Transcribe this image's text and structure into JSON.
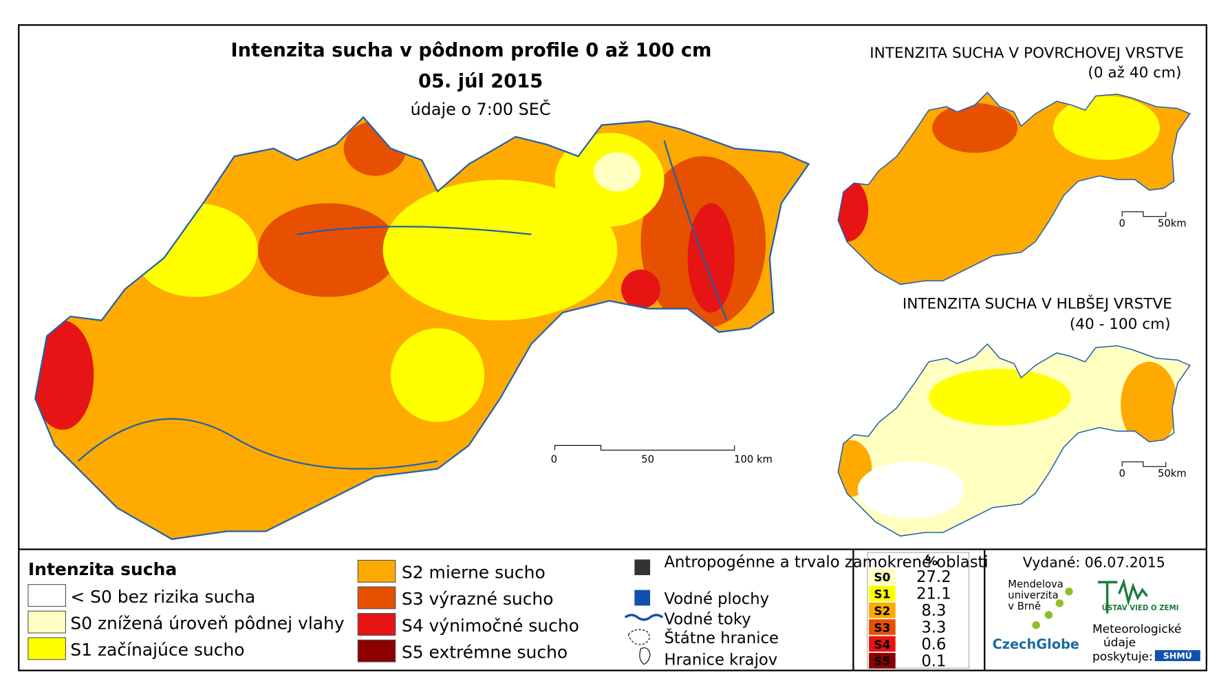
{
  "header": {
    "title": "Intenzita sucha v pôdnom profile 0 až 100 cm",
    "date": "05. júl 2015",
    "note": "údaje o 7:00 SEČ"
  },
  "insets": [
    {
      "title": "INTENZITA SUCHA V POVRCHOVEJ VRSTVE",
      "subtitle": "(0 až 40 cm)",
      "scale": [
        "0",
        "50km"
      ]
    },
    {
      "title": "INTENZITA SUCHA V HLBŠEJ VRSTVE",
      "subtitle": "(40 - 100 cm)",
      "scale": [
        "0",
        "50km"
      ]
    }
  ],
  "main_scale": [
    "0",
    "50",
    "100 km"
  ],
  "legend": {
    "title": "Intenzita sucha",
    "classes": [
      {
        "label": "< S0 bez rizika sucha",
        "color": "#ffffff"
      },
      {
        "label": "S0 znížená úroveň pôdnej vlahy",
        "color": "#ffffc0"
      },
      {
        "label": "S1 začínajúce sucho",
        "color": "#ffff00"
      },
      {
        "label": "S2 mierne sucho",
        "color": "#ffaa00"
      },
      {
        "label": "S3 výrazné sucho",
        "color": "#e65000"
      },
      {
        "label": "S4 výnimočné sucho",
        "color": "#e61414"
      },
      {
        "label": "S5 extrémne sucho",
        "color": "#8c0000"
      }
    ],
    "other": [
      "Antropogénne a trvalo zamokrené oblasti",
      "Vodné plochy",
      "Vodné toky",
      "Štátne hranice",
      "Hranice krajov"
    ]
  },
  "stats": {
    "header": "%",
    "rows": [
      [
        "S0",
        27.2
      ],
      [
        "S1",
        21.1
      ],
      [
        "S2",
        8.3
      ],
      [
        "S3",
        3.3
      ],
      [
        "S4",
        0.6
      ],
      [
        "S5",
        0.1
      ]
    ]
  },
  "footer": {
    "issued": "Vydané: 06.07.2015",
    "mendel": [
      "Mendelova",
      "univerzita",
      "v Brně"
    ],
    "czechglobe": "CzechGlobe",
    "ustav": "ÚSTAV VIED O ZEMI",
    "meteo": [
      "Meteorologické",
      "údaje",
      "poskytuje:"
    ],
    "shmu": "SHMÚ"
  }
}
